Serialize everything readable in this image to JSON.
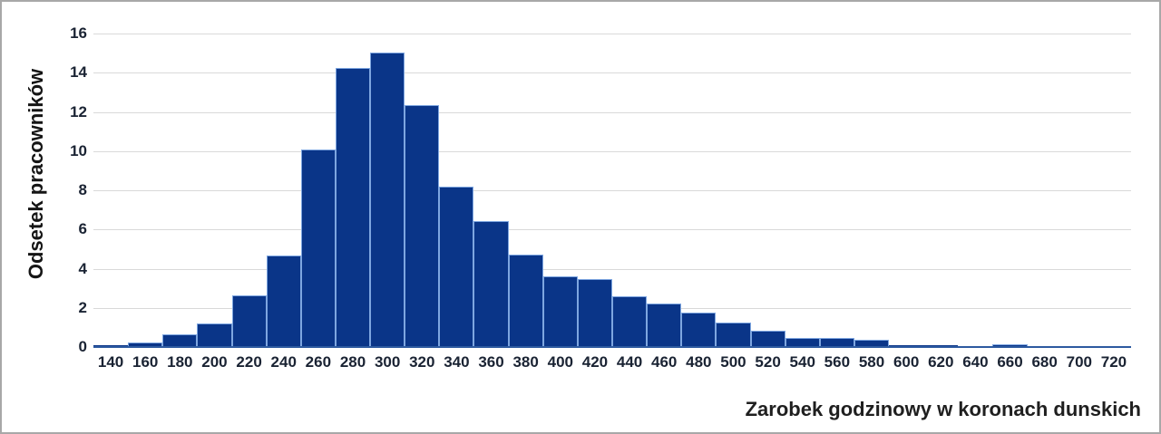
{
  "chart_data": {
    "type": "bar",
    "subtype": "histogram",
    "title": "",
    "xlabel": "Zarobek godzinowy w koronach dunskich",
    "ylabel": "Odsetek pracowników",
    "categories": [
      140,
      160,
      180,
      200,
      220,
      240,
      260,
      280,
      300,
      320,
      340,
      360,
      380,
      400,
      420,
      440,
      460,
      480,
      500,
      520,
      540,
      560,
      580,
      600,
      620,
      640,
      660,
      680,
      700,
      720
    ],
    "values": [
      0.1,
      0.25,
      0.65,
      1.2,
      2.65,
      4.65,
      10.1,
      14.25,
      15.05,
      12.35,
      8.2,
      6.45,
      4.7,
      3.6,
      3.45,
      2.6,
      2.2,
      1.75,
      1.25,
      0.85,
      0.45,
      0.45,
      0.35,
      0.1,
      0.1,
      0.05,
      0.15,
      0.05,
      0.05,
      0.05
    ],
    "ylim": [
      0,
      16
    ],
    "ytick_step": 2,
    "yticks": [
      0,
      2,
      4,
      6,
      8,
      10,
      12,
      14,
      16
    ],
    "grid": "horizontal",
    "legend": "none",
    "colors": {
      "bar_fill": "#0a3588",
      "bar_border": "#7ea6e0",
      "axis_line": "#2d5aa0",
      "gridline": "#d9d9d9",
      "tick_text": "#1a2333"
    }
  }
}
